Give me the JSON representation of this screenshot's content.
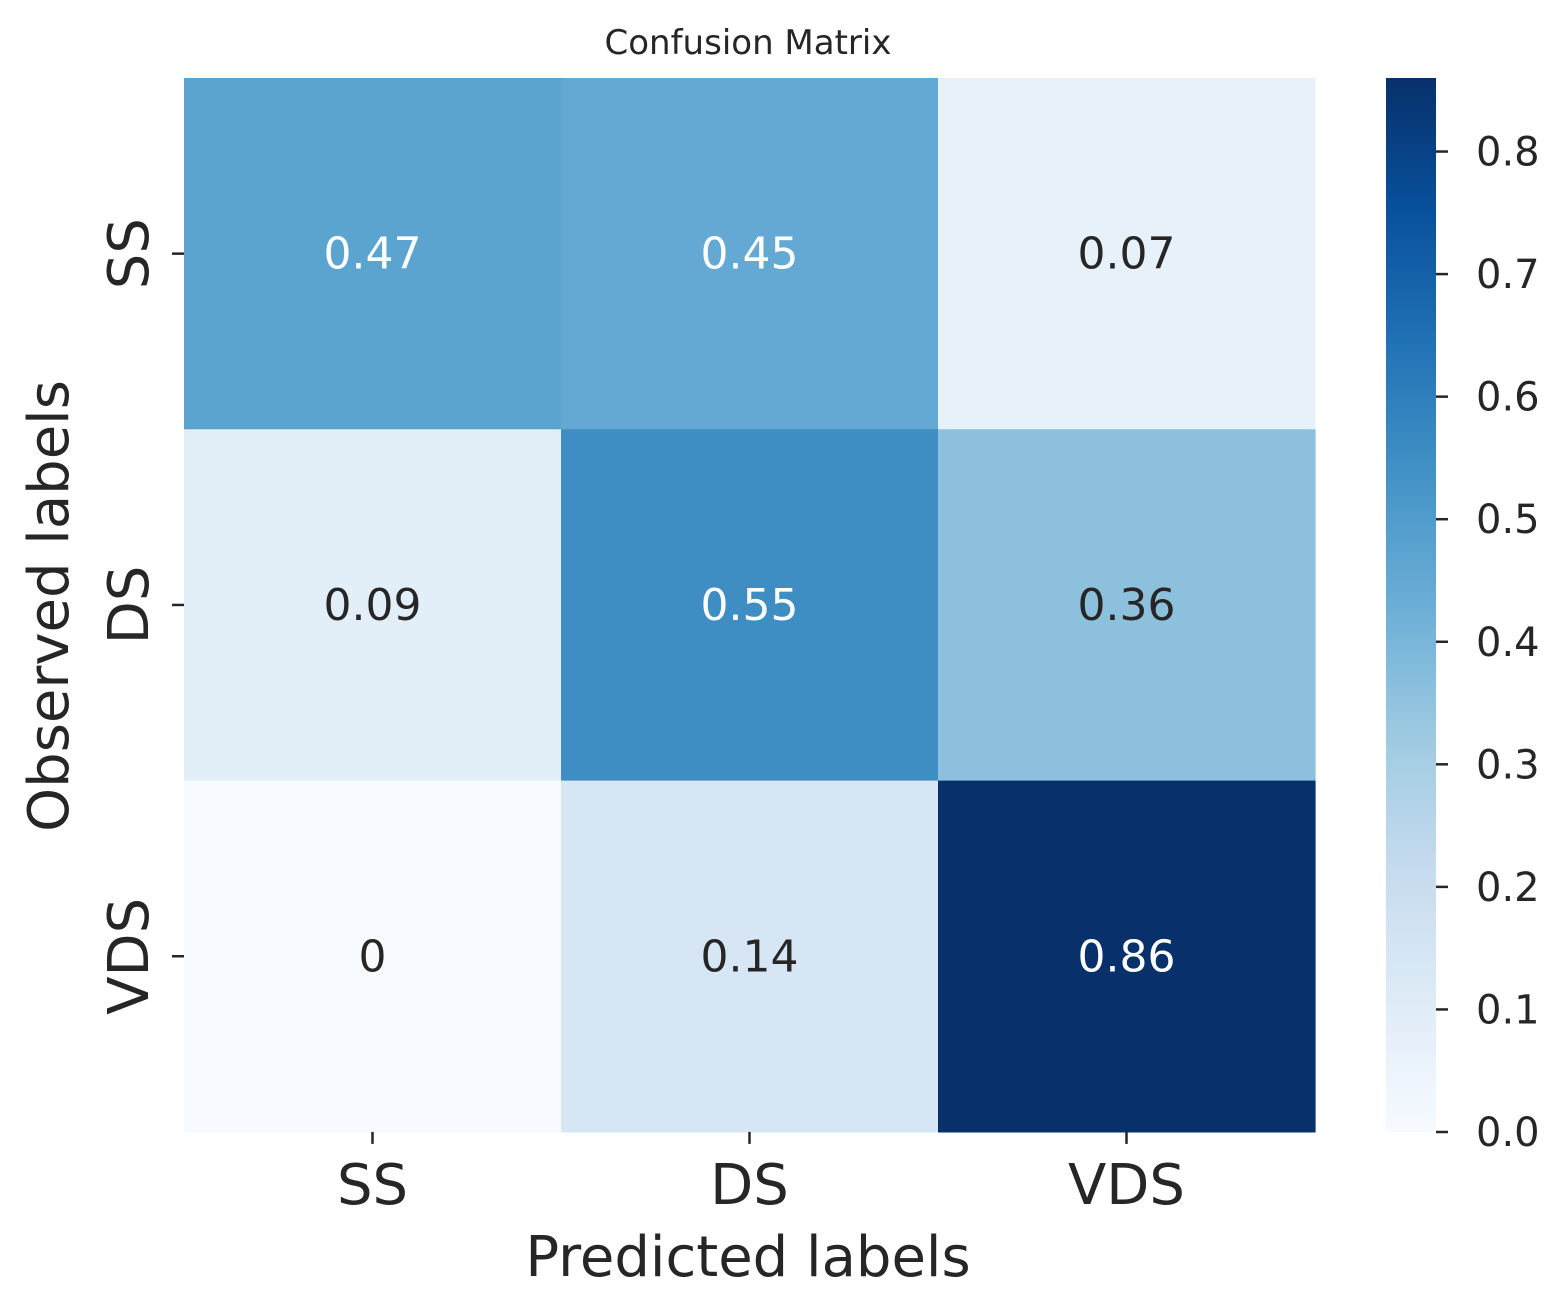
{
  "chart_data": {
    "type": "heatmap",
    "title": "Confusion Matrix",
    "xlabel": "Predicted labels",
    "ylabel": "Observed labels",
    "x_categories": [
      "SS",
      "DS",
      "VDS"
    ],
    "y_categories": [
      "SS",
      "DS",
      "VDS"
    ],
    "values": [
      [
        0.47,
        0.45,
        0.07
      ],
      [
        0.09,
        0.55,
        0.36
      ],
      [
        0,
        0.14,
        0.86
      ]
    ],
    "annotations": [
      [
        "0.47",
        "0.45",
        "0.07"
      ],
      [
        "0.09",
        "0.55",
        "0.36"
      ],
      [
        "0",
        "0.14",
        "0.86"
      ]
    ],
    "colormap": "Blues",
    "colorbar": {
      "vmin": 0.0,
      "vmax": 0.86,
      "ticks": [
        0.0,
        0.1,
        0.2,
        0.3,
        0.4,
        0.5,
        0.6,
        0.7,
        0.8
      ],
      "tick_labels": [
        "0.0",
        "0.1",
        "0.2",
        "0.3",
        "0.4",
        "0.5",
        "0.6",
        "0.7",
        "0.8"
      ]
    },
    "colors": {
      "light_text": "#ffffff",
      "dark_text": "#262626",
      "axis": "#262626"
    }
  }
}
